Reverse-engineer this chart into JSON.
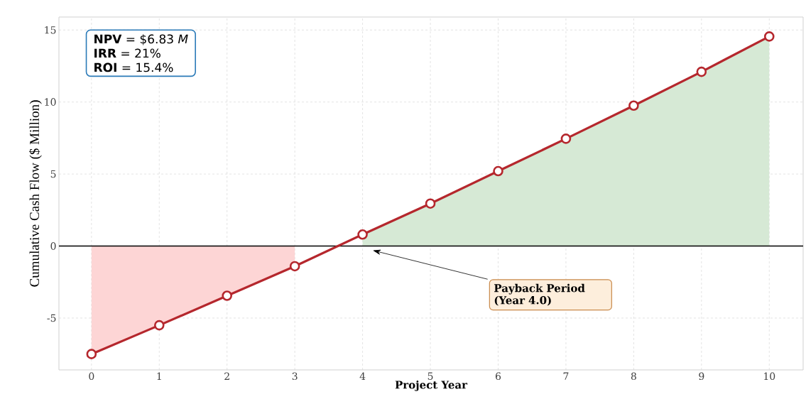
{
  "chart_data": {
    "type": "line",
    "xlabel": "Project Year",
    "ylabel": "Cumulative Cash Flow ($ Million)",
    "x": [
      0,
      1,
      2,
      3,
      4,
      5,
      6,
      7,
      8,
      9,
      10
    ],
    "series": [
      {
        "type": "area",
        "color": "#fdd5d5",
        "x": [
          0,
          1,
          2,
          3
        ],
        "values": [
          -7.5,
          -5.5,
          -3.45,
          -1.4
        ]
      },
      {
        "type": "area",
        "color": "#d6e9d5",
        "x": [
          4,
          5,
          6,
          7,
          8,
          9,
          10
        ],
        "values": [
          0.8,
          2.95,
          5.2,
          7.45,
          9.75,
          12.1,
          14.55
        ]
      },
      {
        "color": "#b5272d",
        "marker": "circle",
        "values": [
          -7.5,
          -5.5,
          -3.45,
          -1.4,
          0.8,
          2.95,
          5.2,
          7.45,
          9.75,
          12.1,
          14.55
        ]
      }
    ],
    "line_style": "solid",
    "grid": true,
    "xlim": [
      -0.48,
      10.5
    ],
    "ylim": [
      -8.6,
      15.9
    ],
    "xticks": [
      0,
      1,
      2,
      3,
      4,
      5,
      6,
      7,
      8,
      9,
      10
    ],
    "yticks": [
      -5,
      0,
      5,
      10,
      15
    ],
    "ref_lines": [
      {
        "axis": "y",
        "value": 0,
        "color": "#000000"
      }
    ],
    "annotations": [
      "**NPV** = $6.83 *M*",
      "**IRR** = 21%",
      "**ROI** = 15.4%",
      "Payback Period (Year 4.0)"
    ]
  }
}
